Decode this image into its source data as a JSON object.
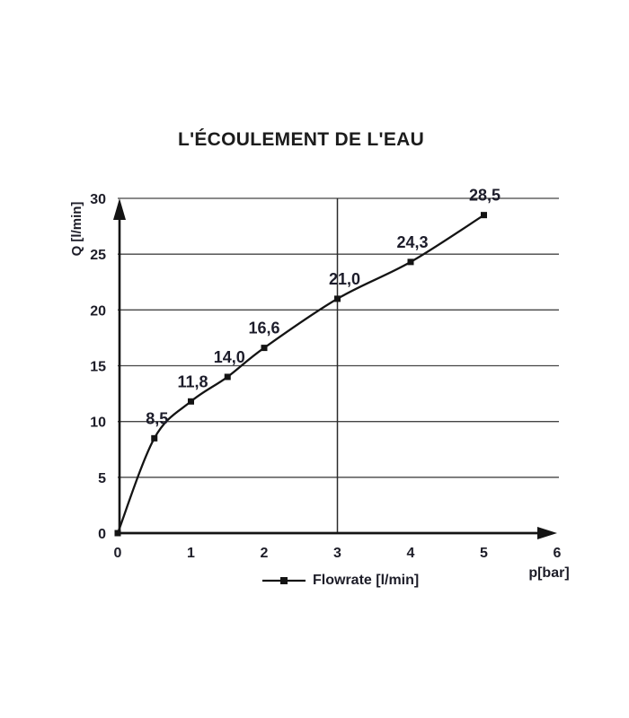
{
  "chart_data": {
    "type": "line",
    "title": "L'ÉCOULEMENT DE L'EAU",
    "xlabel": "p[bar]",
    "ylabel": "Q [l/min]",
    "xlim": [
      0,
      6
    ],
    "ylim": [
      0,
      30
    ],
    "x_ticks": [
      "0",
      "1",
      "2",
      "3",
      "4",
      "5",
      "6"
    ],
    "x_tick_values": [
      0,
      1,
      2,
      3,
      4,
      5,
      6
    ],
    "y_ticks": [
      "0",
      "5",
      "10",
      "15",
      "20",
      "25",
      "30"
    ],
    "y_tick_values": [
      0,
      5,
      10,
      15,
      20,
      25,
      30
    ],
    "grid": {
      "horizontal": true,
      "vertical_lines_at": [
        3
      ]
    },
    "legend": {
      "position": "bottom",
      "entries": [
        "Flowrate [l/min]"
      ]
    },
    "series": [
      {
        "name": "Flowrate [l/min]",
        "x": [
          0,
          0.5,
          1,
          1.5,
          2,
          3,
          4,
          5
        ],
        "y": [
          0,
          8.5,
          11.8,
          14.0,
          16.6,
          21.0,
          24.3,
          28.5
        ],
        "point_labels": [
          "",
          "8,5",
          "11,8",
          "14,0",
          "16,6",
          "21,0",
          "24,3",
          "28,5"
        ],
        "marker": "square",
        "color": "#141414"
      }
    ],
    "colors": {
      "axis": "#141414",
      "gridline": "#454545",
      "text": "#1d1d28",
      "data_label": "#1c1c2a"
    }
  }
}
